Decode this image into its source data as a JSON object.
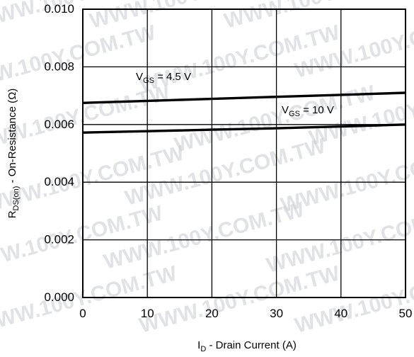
{
  "chart_data": {
    "type": "line",
    "xlabel": {
      "main": "I",
      "sub": "D",
      "rest": " - Drain Current (A)"
    },
    "ylabel": {
      "main": "R",
      "sub": "DS(on)",
      "rest": " - On-Resistance (Ω)"
    },
    "xlim": [
      0,
      50
    ],
    "ylim": [
      0,
      0.01
    ],
    "xticks": [
      "0",
      "10",
      "20",
      "30",
      "40",
      "50"
    ],
    "yticks": [
      "0.000",
      "0.002",
      "0.004",
      "0.006",
      "0.008",
      "0.010"
    ],
    "grid": true,
    "series": [
      {
        "name": "VGS = 4.5 V",
        "label_main": "V",
        "label_sub": "GS",
        "label_rest": " = 4.5 V",
        "x": [
          0,
          10,
          20,
          30,
          40,
          50
        ],
        "y": [
          0.00675,
          0.00682,
          0.00689,
          0.00696,
          0.00703,
          0.0071
        ]
      },
      {
        "name": "VGS = 10 V",
        "label_main": "V",
        "label_sub": "GS",
        "label_rest": " = 10 V",
        "x": [
          0,
          10,
          20,
          30,
          40,
          50
        ],
        "y": [
          0.00572,
          0.00577,
          0.00582,
          0.00587,
          0.00593,
          0.006
        ]
      }
    ]
  },
  "watermark": {
    "text": "WWW.100Y.COM.TW"
  }
}
